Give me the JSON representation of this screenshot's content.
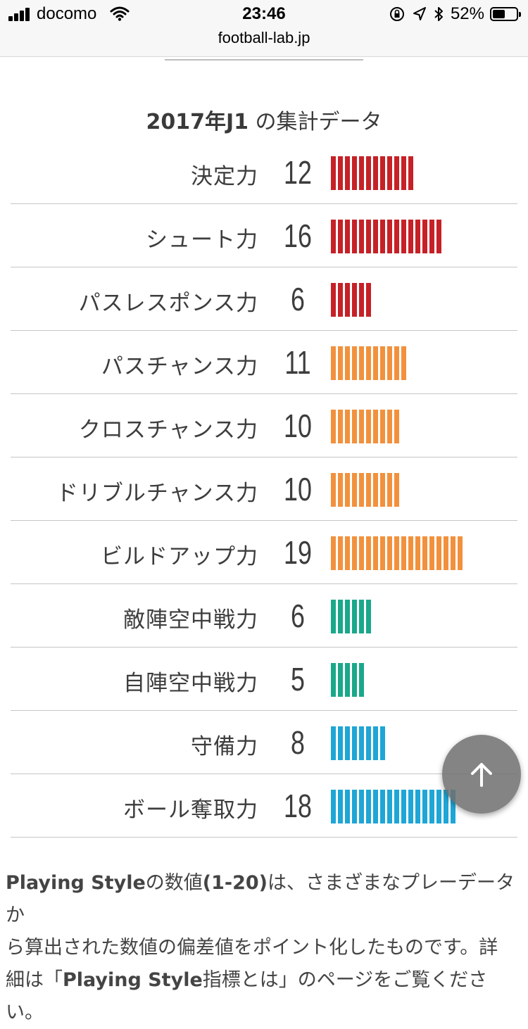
{
  "status_bar": {
    "carrier": "docomo",
    "time": "23:46",
    "battery_percent": "52%",
    "battery_level": 0.52
  },
  "browser": {
    "url": "football-lab.jp"
  },
  "section": {
    "year": "2017年J1",
    "title_suffix": " の集計データ"
  },
  "colors": {
    "red": "#c62127",
    "orange": "#f2913d",
    "green": "#1aa88a",
    "blue": "#1ea6d6"
  },
  "stats": [
    {
      "label": "決定力",
      "value": 12,
      "color": "red"
    },
    {
      "label": "シュート力",
      "value": 16,
      "color": "red"
    },
    {
      "label": "パスレスポンス力",
      "value": 6,
      "color": "red"
    },
    {
      "label": "パスチャンス力",
      "value": 11,
      "color": "orange"
    },
    {
      "label": "クロスチャンス力",
      "value": 10,
      "color": "orange"
    },
    {
      "label": "ドリブルチャンス力",
      "value": 10,
      "color": "orange"
    },
    {
      "label": "ビルドアップ力",
      "value": 19,
      "color": "orange"
    },
    {
      "label": "敵陣空中戦力",
      "value": 6,
      "color": "green"
    },
    {
      "label": "自陣空中戦力",
      "value": 5,
      "color": "green"
    },
    {
      "label": "守備力",
      "value": 8,
      "color": "blue"
    },
    {
      "label": "ボール奪取力",
      "value": 18,
      "color": "blue"
    }
  ],
  "description": {
    "line1_bold": "Playing Style",
    "line1_a": "の数値",
    "line1_range": "(1-20)",
    "line1_b": "は、さまざまなプレーデータか",
    "line2": "ら算出された数値の偏差値をポイント化したものです。詳",
    "line3_a": "細は「",
    "line3_bold": "Playing Style",
    "line3_b": "指標とは」のページをご覧ください。"
  },
  "scroll_top": {
    "icon": "arrow-up-icon"
  }
}
